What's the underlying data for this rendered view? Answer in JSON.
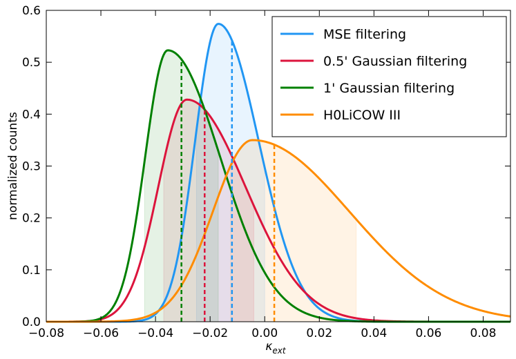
{
  "chart_data": {
    "type": "line",
    "title": "",
    "xlabel": "κ",
    "xlabel_sub": "ext",
    "ylabel": "normalized counts",
    "xlim": [
      -0.08,
      0.09
    ],
    "ylim": [
      0,
      0.6
    ],
    "xticks": [
      -0.08,
      -0.06,
      -0.04,
      -0.02,
      0.0,
      0.02,
      0.04,
      0.06,
      0.08
    ],
    "xtick_labels": [
      "−0.08",
      "−0.06",
      "−0.04",
      "−0.02",
      "0.00",
      "0.02",
      "0.04",
      "0.06",
      "0.08"
    ],
    "yticks": [
      0.0,
      0.1,
      0.2,
      0.3,
      0.4,
      0.5,
      0.6
    ],
    "ytick_labels": [
      "0.0",
      "0.1",
      "0.2",
      "0.3",
      "0.4",
      "0.5",
      "0.6"
    ],
    "legend_position": "top-right",
    "series": [
      {
        "name": "MSE filtering",
        "color": "#2196f3",
        "mode": -0.017,
        "peak": 0.574,
        "sigma_left": 0.0085,
        "sigma_right": 0.0148,
        "median": -0.012,
        "band": [
          -0.025,
          0.0
        ]
      },
      {
        "name": "0.5' Gaussian filtering",
        "color": "#dc143c",
        "mode": -0.0285,
        "peak": 0.428,
        "sigma_left": 0.0105,
        "sigma_right": 0.0215,
        "median": -0.022,
        "band": [
          -0.037,
          -0.004
        ]
      },
      {
        "name": "1' Gaussian filtering",
        "color": "#008000",
        "mode": -0.0355,
        "peak": 0.523,
        "sigma_left": 0.0083,
        "sigma_right": 0.0192,
        "median": -0.0305,
        "band": [
          -0.044,
          -0.017
        ]
      },
      {
        "name": "H0LiCOW III",
        "color": "#ff8c00",
        "mode": -0.0045,
        "peak": 0.35,
        "sigma_left": 0.0145,
        "sigma_right": 0.0355,
        "median": 0.0035,
        "band": [
          -0.0125,
          0.0335
        ]
      }
    ]
  }
}
